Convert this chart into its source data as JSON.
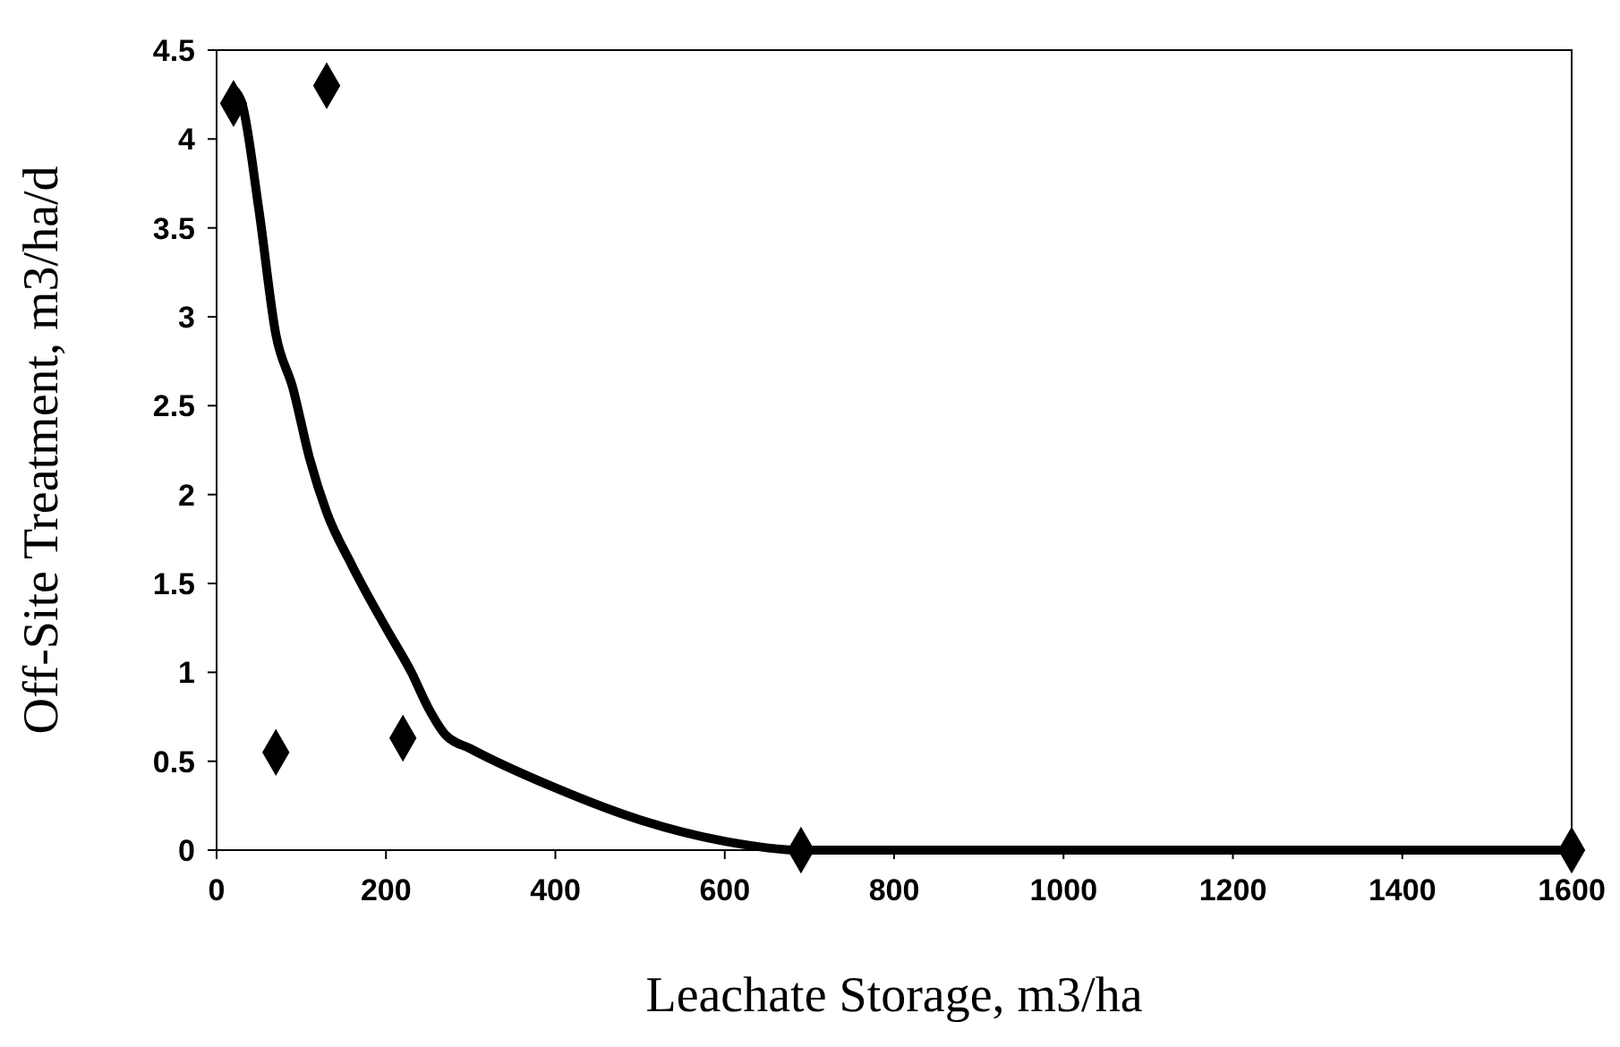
{
  "chart_data": {
    "type": "scatter",
    "xlabel": "Leachate Storage, m3/ha",
    "ylabel": "Off-Site Treatment, m3/ha/d",
    "xlim": [
      0,
      1600
    ],
    "xticks": [
      0,
      200,
      400,
      600,
      800,
      1000,
      1200,
      1400,
      1600
    ],
    "ylim": [
      0,
      4.5
    ],
    "yticks": [
      0,
      0.5,
      1,
      1.5,
      2,
      2.5,
      3,
      3.5,
      4,
      4.5
    ],
    "grid": false,
    "series": [
      {
        "color": "#000000",
        "marker": "diamond",
        "x": [
          20,
          70,
          130,
          220,
          690,
          1600
        ],
        "values": [
          4.2,
          0.55,
          4.3,
          0.63,
          0,
          0
        ]
      },
      {
        "type": "line",
        "color": "#000000",
        "marker": "none",
        "line_style": "solid",
        "x": [
          20,
          30,
          50,
          70,
          90,
          110,
          130,
          160,
          200,
          230,
          250,
          270,
          300,
          400,
          500,
          600,
          690,
          800,
          1000,
          1200,
          1400,
          1600
        ],
        "values": [
          4.28,
          4.2,
          3.6,
          2.9,
          2.6,
          2.2,
          1.9,
          1.6,
          1.25,
          1.0,
          0.8,
          0.65,
          0.57,
          0.35,
          0.17,
          0.05,
          0,
          0,
          0,
          0,
          0,
          0
        ]
      }
    ]
  }
}
